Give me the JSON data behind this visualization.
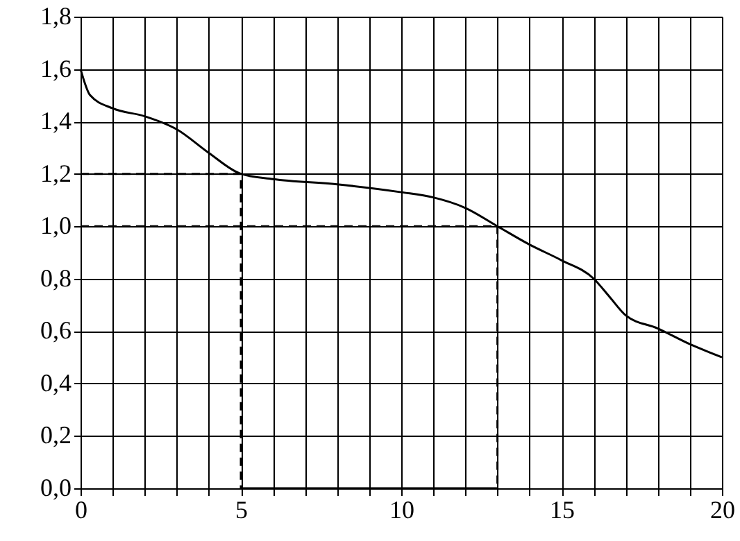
{
  "chart_data": {
    "type": "line",
    "x": [
      0,
      0.3,
      1,
      2,
      3,
      4,
      5,
      6,
      8,
      10,
      11,
      12,
      13,
      14,
      15,
      16,
      16.5,
      17,
      18,
      19,
      20
    ],
    "series": [
      {
        "color": "#000000",
        "values": [
          1.6,
          1.5,
          1.45,
          1.42,
          1.37,
          1.28,
          1.2,
          1.18,
          1.16,
          1.13,
          1.11,
          1.07,
          1.0,
          0.93,
          0.87,
          0.8,
          0.73,
          0.66,
          0.61,
          0.55,
          0.5
        ]
      },
      {
        "color": "#000000",
        "x": [
          0,
          5,
          5
        ],
        "values": [
          1.2,
          1.2,
          0
        ],
        "line_style": "dashed"
      },
      {
        "color": "#000000",
        "x": [
          0,
          13,
          13
        ],
        "values": [
          1.0,
          1.0,
          0
        ],
        "line_style": "dashed"
      },
      {
        "color": "#000000",
        "x": [
          5,
          13
        ],
        "values": [
          0,
          0
        ]
      }
    ],
    "xlim": [
      0,
      20
    ],
    "xticks": [
      0,
      {
        "value": 1,
        "label": null
      },
      {
        "value": 2,
        "label": null
      },
      {
        "value": 3,
        "label": null
      },
      {
        "value": 4,
        "label": null
      },
      5,
      {
        "value": 6,
        "label": null
      },
      {
        "value": 7,
        "label": null
      },
      {
        "value": 8,
        "label": null
      },
      {
        "value": 9,
        "label": null
      },
      10,
      {
        "value": 11,
        "label": null
      },
      {
        "value": 12,
        "label": null
      },
      {
        "value": 13,
        "label": null
      },
      {
        "value": 14,
        "label": null
      },
      15,
      {
        "value": 16,
        "label": null
      },
      {
        "value": 17,
        "label": null
      },
      {
        "value": 18,
        "label": null
      },
      {
        "value": 19,
        "label": null
      },
      20
    ],
    "ylim": [
      0,
      1.8
    ],
    "yticks": [
      {
        "value": 0,
        "label": "0,0"
      },
      {
        "value": 0.2,
        "label": "0,2"
      },
      {
        "value": 0.4,
        "label": "0,4"
      },
      {
        "value": 0.6,
        "label": "0,6"
      },
      {
        "value": 0.8,
        "label": "0,8"
      },
      {
        "value": 1.0,
        "label": "1,0"
      },
      {
        "value": 1.2,
        "label": "1,2"
      },
      {
        "value": 1.4,
        "label": "1,4"
      },
      {
        "value": 1.6,
        "label": "1,6"
      },
      {
        "value": 1.8,
        "label": "1,8"
      }
    ],
    "grid": true
  }
}
